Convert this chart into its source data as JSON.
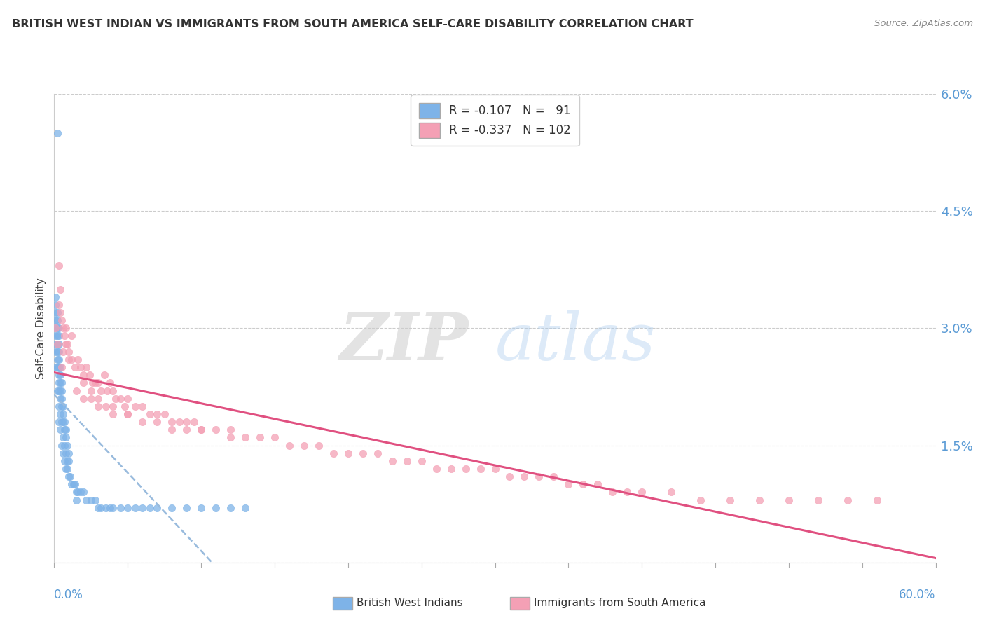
{
  "title": "BRITISH WEST INDIAN VS IMMIGRANTS FROM SOUTH AMERICA SELF-CARE DISABILITY CORRELATION CHART",
  "source": "Source: ZipAtlas.com",
  "ylabel": "Self-Care Disability",
  "xmin": 0.0,
  "xmax": 0.6,
  "ymin": 0.0,
  "ymax": 0.06,
  "yticks": [
    0.0,
    0.015,
    0.03,
    0.045,
    0.06
  ],
  "ytick_labels": [
    "",
    "1.5%",
    "3.0%",
    "4.5%",
    "6.0%"
  ],
  "series1_name": "British West Indians",
  "series1_color": "#7eb3e8",
  "series1_R": -0.107,
  "series1_N": 91,
  "series2_name": "Immigrants from South America",
  "series2_color": "#f4a0b5",
  "series2_R": -0.337,
  "series2_N": 102,
  "watermark_zip": "ZIP",
  "watermark_atlas": "atlas",
  "background_color": "#ffffff",
  "title_color": "#333333",
  "axis_label_color": "#5b9bd5",
  "series1_line_color": "#6699cc",
  "series2_line_color": "#e05080",
  "series1_x": [
    0.001,
    0.001,
    0.001,
    0.001,
    0.001,
    0.001,
    0.001,
    0.001,
    0.001,
    0.002,
    0.002,
    0.002,
    0.002,
    0.002,
    0.002,
    0.002,
    0.002,
    0.002,
    0.003,
    0.003,
    0.003,
    0.003,
    0.003,
    0.003,
    0.003,
    0.003,
    0.003,
    0.003,
    0.003,
    0.004,
    0.004,
    0.004,
    0.004,
    0.004,
    0.004,
    0.004,
    0.005,
    0.005,
    0.005,
    0.005,
    0.005,
    0.005,
    0.006,
    0.006,
    0.006,
    0.006,
    0.006,
    0.007,
    0.007,
    0.007,
    0.007,
    0.008,
    0.008,
    0.008,
    0.008,
    0.009,
    0.009,
    0.009,
    0.01,
    0.01,
    0.01,
    0.011,
    0.012,
    0.013,
    0.014,
    0.015,
    0.016,
    0.018,
    0.02,
    0.022,
    0.025,
    0.028,
    0.03,
    0.032,
    0.035,
    0.038,
    0.04,
    0.045,
    0.05,
    0.055,
    0.06,
    0.065,
    0.07,
    0.08,
    0.09,
    0.1,
    0.11,
    0.12,
    0.13,
    0.015,
    0.002
  ],
  "series1_y": [
    0.025,
    0.027,
    0.028,
    0.029,
    0.03,
    0.031,
    0.032,
    0.033,
    0.034,
    0.022,
    0.025,
    0.026,
    0.027,
    0.028,
    0.029,
    0.03,
    0.031,
    0.032,
    0.018,
    0.02,
    0.022,
    0.023,
    0.024,
    0.025,
    0.026,
    0.027,
    0.028,
    0.029,
    0.03,
    0.017,
    0.019,
    0.021,
    0.022,
    0.023,
    0.024,
    0.025,
    0.015,
    0.018,
    0.02,
    0.021,
    0.022,
    0.023,
    0.014,
    0.016,
    0.018,
    0.019,
    0.02,
    0.013,
    0.015,
    0.017,
    0.018,
    0.012,
    0.014,
    0.016,
    0.017,
    0.012,
    0.013,
    0.015,
    0.011,
    0.013,
    0.014,
    0.011,
    0.01,
    0.01,
    0.01,
    0.009,
    0.009,
    0.009,
    0.009,
    0.008,
    0.008,
    0.008,
    0.007,
    0.007,
    0.007,
    0.007,
    0.007,
    0.007,
    0.007,
    0.007,
    0.007,
    0.007,
    0.007,
    0.007,
    0.007,
    0.007,
    0.007,
    0.007,
    0.007,
    0.008,
    0.055
  ],
  "series2_x": [
    0.001,
    0.002,
    0.003,
    0.004,
    0.005,
    0.006,
    0.007,
    0.008,
    0.009,
    0.01,
    0.012,
    0.014,
    0.016,
    0.018,
    0.02,
    0.022,
    0.024,
    0.026,
    0.028,
    0.03,
    0.032,
    0.034,
    0.036,
    0.038,
    0.04,
    0.042,
    0.045,
    0.048,
    0.05,
    0.055,
    0.06,
    0.065,
    0.07,
    0.075,
    0.08,
    0.085,
    0.09,
    0.095,
    0.1,
    0.11,
    0.12,
    0.13,
    0.14,
    0.15,
    0.16,
    0.17,
    0.18,
    0.19,
    0.2,
    0.21,
    0.22,
    0.23,
    0.24,
    0.25,
    0.26,
    0.27,
    0.28,
    0.29,
    0.3,
    0.31,
    0.32,
    0.33,
    0.34,
    0.35,
    0.36,
    0.37,
    0.38,
    0.39,
    0.4,
    0.42,
    0.44,
    0.46,
    0.48,
    0.5,
    0.52,
    0.54,
    0.56,
    0.015,
    0.02,
    0.025,
    0.03,
    0.035,
    0.04,
    0.05,
    0.06,
    0.07,
    0.08,
    0.09,
    0.1,
    0.12,
    0.003,
    0.004,
    0.005,
    0.006,
    0.008,
    0.01,
    0.012,
    0.02,
    0.025,
    0.03,
    0.04,
    0.05
  ],
  "series2_y": [
    0.03,
    0.028,
    0.033,
    0.032,
    0.025,
    0.027,
    0.029,
    0.03,
    0.028,
    0.026,
    0.029,
    0.025,
    0.026,
    0.025,
    0.024,
    0.025,
    0.024,
    0.023,
    0.023,
    0.023,
    0.022,
    0.024,
    0.022,
    0.023,
    0.022,
    0.021,
    0.021,
    0.02,
    0.021,
    0.02,
    0.02,
    0.019,
    0.019,
    0.019,
    0.018,
    0.018,
    0.018,
    0.018,
    0.017,
    0.017,
    0.017,
    0.016,
    0.016,
    0.016,
    0.015,
    0.015,
    0.015,
    0.014,
    0.014,
    0.014,
    0.014,
    0.013,
    0.013,
    0.013,
    0.012,
    0.012,
    0.012,
    0.012,
    0.012,
    0.011,
    0.011,
    0.011,
    0.011,
    0.01,
    0.01,
    0.01,
    0.009,
    0.009,
    0.009,
    0.009,
    0.008,
    0.008,
    0.008,
    0.008,
    0.008,
    0.008,
    0.008,
    0.022,
    0.021,
    0.021,
    0.02,
    0.02,
    0.019,
    0.019,
    0.018,
    0.018,
    0.017,
    0.017,
    0.017,
    0.016,
    0.038,
    0.035,
    0.031,
    0.03,
    0.028,
    0.027,
    0.026,
    0.023,
    0.022,
    0.021,
    0.02,
    0.019
  ]
}
